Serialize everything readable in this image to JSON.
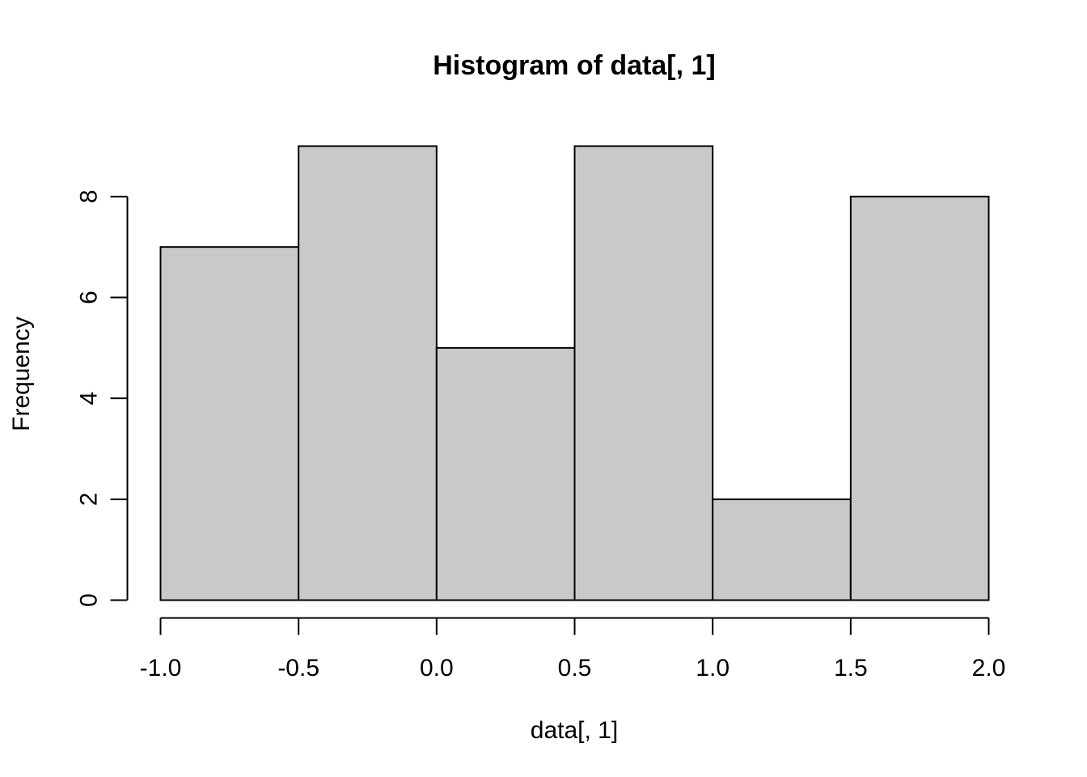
{
  "chart_data": {
    "type": "bar",
    "title": "Histogram of data[, 1]",
    "xlabel": "data[, 1]",
    "ylabel": "Frequency",
    "bins": [
      {
        "start": -1.0,
        "end": -0.5,
        "count": 7
      },
      {
        "start": -0.5,
        "end": 0.0,
        "count": 9
      },
      {
        "start": 0.0,
        "end": 0.5,
        "count": 5
      },
      {
        "start": 0.5,
        "end": 1.0,
        "count": 9
      },
      {
        "start": 1.0,
        "end": 1.5,
        "count": 2
      },
      {
        "start": 1.5,
        "end": 2.0,
        "count": 8
      }
    ],
    "xlim": [
      -1.0,
      2.0
    ],
    "ylim": [
      0,
      9
    ],
    "x_ticks": [
      -1.0,
      -0.5,
      0.0,
      0.5,
      1.0,
      1.5,
      2.0
    ],
    "x_tick_labels": [
      "-1.0",
      "-0.5",
      "0.0",
      "0.5",
      "1.0",
      "1.5",
      "2.0"
    ],
    "y_ticks": [
      0,
      2,
      4,
      6,
      8
    ],
    "y_tick_labels": [
      "0",
      "2",
      "4",
      "6",
      "8"
    ],
    "bar_color": "#c9c9c9",
    "edge_color": "#000000",
    "grid": false
  }
}
